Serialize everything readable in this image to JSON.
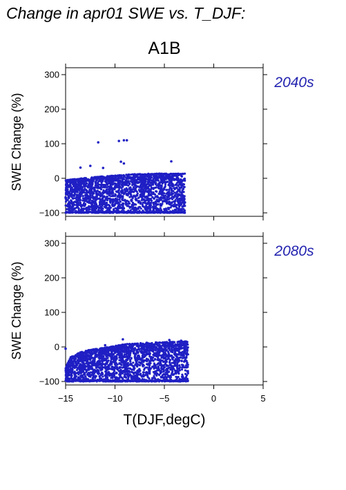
{
  "figure_title": "Change in apr01 SWE vs. T_DJF:",
  "scenario": "A1B",
  "colors": {
    "points": "#1f1fc4",
    "period_label": "#2323b0",
    "axes": "#000000"
  },
  "chart_data": [
    {
      "type": "scatter",
      "period_label": "2040s",
      "ylabel": "SWE Change (%)",
      "xlabel": "",
      "xlim": [
        -15,
        5
      ],
      "ylim": [
        -110,
        320
      ],
      "xticks": [
        -15,
        -10,
        -5,
        0,
        5
      ],
      "yticks": [
        -100,
        0,
        100,
        200,
        300
      ],
      "grid": false,
      "notable_points": [
        {
          "x": -11.7,
          "y": 104
        },
        {
          "x": -9.6,
          "y": 108
        },
        {
          "x": -9.1,
          "y": 110
        },
        {
          "x": -8.8,
          "y": 110
        },
        {
          "x": -9.4,
          "y": 48
        },
        {
          "x": -4.3,
          "y": 49
        },
        {
          "x": -12.5,
          "y": 36
        },
        {
          "x": -13.5,
          "y": 31
        },
        {
          "x": -11.2,
          "y": 30
        },
        {
          "x": -9.1,
          "y": 43
        },
        {
          "x": -15.0,
          "y": -55
        }
      ],
      "cloud": {
        "x_range": [
          -15.0,
          -2.9
        ],
        "y_upper_points": [
          [
            -15.0,
            -5
          ],
          [
            -14.0,
            -2
          ],
          [
            -13.0,
            1
          ],
          [
            -12.0,
            4
          ],
          [
            -10.0,
            8
          ],
          [
            -8.0,
            12
          ],
          [
            -6.0,
            14
          ],
          [
            -4.0,
            13
          ],
          [
            -2.9,
            14
          ]
        ],
        "y_lower": -100,
        "point_count": 2600
      }
    },
    {
      "type": "scatter",
      "period_label": "2080s",
      "ylabel": "SWE Change (%)",
      "xlabel": "T(DJF,degC)",
      "xlim": [
        -15,
        5
      ],
      "ylim": [
        -110,
        320
      ],
      "xticks": [
        -15,
        -10,
        -5,
        0,
        5
      ],
      "yticks": [
        -100,
        0,
        100,
        200,
        300
      ],
      "xtick_labels": [
        "−15",
        "−10",
        "−5",
        "0",
        "5"
      ],
      "grid": false,
      "notable_points": [
        {
          "x": -15.0,
          "y": -5
        },
        {
          "x": -9.2,
          "y": 22
        },
        {
          "x": -4.5,
          "y": 20
        },
        {
          "x": -3.3,
          "y": 18
        },
        {
          "x": -11.0,
          "y": 5
        }
      ],
      "cloud": {
        "x_range": [
          -15.0,
          -2.6
        ],
        "y_upper_points": [
          [
            -15.0,
            -60
          ],
          [
            -14.5,
            -30
          ],
          [
            -13.5,
            -15
          ],
          [
            -12.5,
            -8
          ],
          [
            -11.0,
            -2
          ],
          [
            -9.0,
            8
          ],
          [
            -7.0,
            12
          ],
          [
            -5.0,
            14
          ],
          [
            -3.0,
            16
          ]
        ],
        "y_lower": -100,
        "point_count": 2600
      }
    }
  ]
}
